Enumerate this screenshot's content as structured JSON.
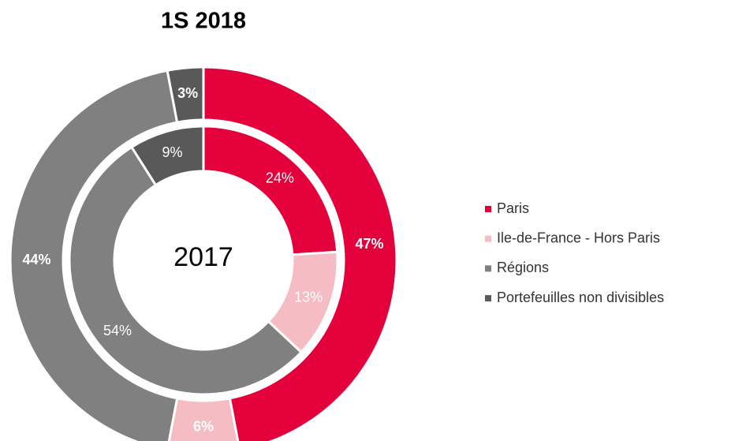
{
  "chart_data": {
    "type": "donut",
    "title": "1S 2018",
    "center_label": "2017",
    "categories": [
      "Paris",
      "Ile-de-France - Hors Paris",
      "Régions",
      "Portefeuilles non divisibles"
    ],
    "colors": [
      "#e4003a",
      "#f6bcc4",
      "#808080",
      "#595959"
    ],
    "series": [
      {
        "values": [
          47,
          6,
          44,
          3
        ],
        "value_labels": [
          "47%",
          "6%",
          "44%",
          "3%"
        ]
      },
      {
        "values": [
          24,
          13,
          54,
          9
        ],
        "value_labels": [
          "24%",
          "13%",
          "54%",
          "9%"
        ]
      }
    ]
  }
}
